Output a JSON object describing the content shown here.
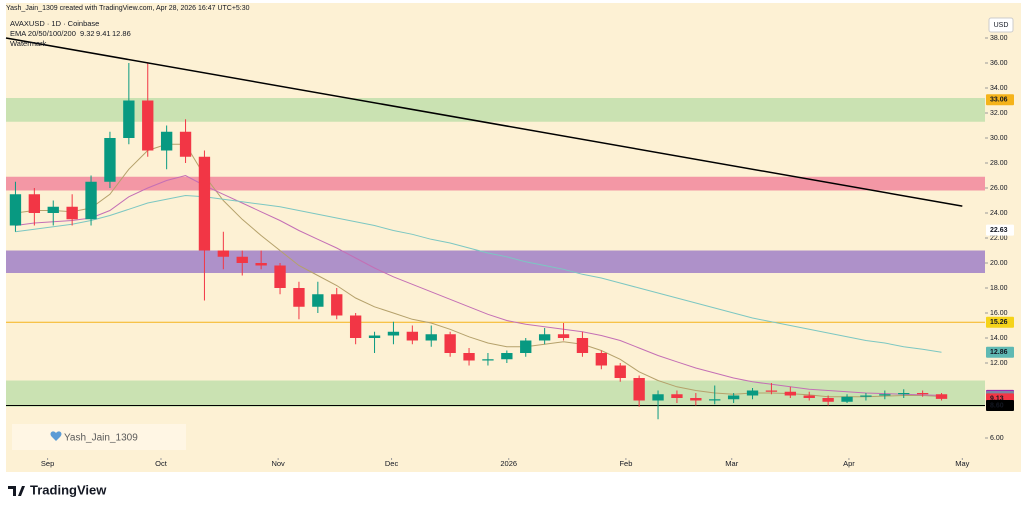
{
  "header": {
    "creator": "Yash_Jain_1309 created with TradingView.com, Apr 28, 2026 16:47 UTC+5:30",
    "watermark_label": "Watermark",
    "watermark_box": "Yash_Jain_1309",
    "brand": "TradingView"
  },
  "chart_data": {
    "type": "candlestick",
    "title": "AVAXUSD · 1D · Coinbase",
    "currency": "USD",
    "indicator_label": "EMA 20/50/100/200",
    "indicator_values": [
      9.32,
      9.41,
      12.86
    ],
    "up_color": "#089981",
    "down_color": "#f23645",
    "background": "#fdf1d4",
    "ohlc": {
      "open": [
        23,
        25.5,
        24,
        24.5,
        23.5,
        26.5,
        30,
        33,
        29,
        30.5,
        28.5,
        21,
        20.5,
        20,
        19.8,
        18,
        16.5,
        17.5,
        15.8,
        14,
        14.2,
        14.5,
        13.8,
        14.3,
        12.8,
        12.2,
        12.3,
        12.8,
        13.8,
        14.3,
        14,
        12.8,
        11.8,
        10.8,
        9,
        9.5,
        9.2,
        9,
        9.1,
        9.4,
        9.8,
        9.7,
        9.4,
        9.2,
        8.9,
        9.3,
        9.4,
        9.5,
        9.6,
        9.5
      ],
      "high": [
        26.5,
        26,
        25,
        25.5,
        27,
        30.5,
        36,
        36,
        31,
        31.5,
        29,
        22.5,
        21,
        21,
        20,
        18.5,
        18.5,
        18,
        16,
        14.5,
        15.3,
        15,
        15,
        14.5,
        13.2,
        12.8,
        13,
        14,
        14.8,
        15.2,
        14.5,
        13,
        12,
        11,
        9.8,
        9.8,
        9.6,
        10.2,
        9.6,
        10,
        10.4,
        10.1,
        9.7,
        9.4,
        9.5,
        9.6,
        9.8,
        9.9,
        9.8,
        9.6
      ],
      "low": [
        22.5,
        23,
        23,
        23,
        23,
        26,
        29.5,
        28.5,
        27.5,
        28,
        17,
        19.5,
        19,
        19.5,
        17.5,
        15.5,
        16,
        15.5,
        13.5,
        12.8,
        13.5,
        13.5,
        13.3,
        12.5,
        11.8,
        11.8,
        12,
        12.5,
        13.5,
        13.8,
        12.5,
        11.5,
        10.5,
        8.5,
        7.5,
        8.8,
        8.6,
        8.7,
        8.8,
        9.1,
        9.5,
        9.2,
        9,
        8.6,
        8.8,
        9,
        9.1,
        9.2,
        9.3,
        9.0
      ],
      "close": [
        25.5,
        24,
        24.5,
        23.5,
        26.5,
        30,
        33,
        29,
        30.5,
        28.5,
        21,
        20.5,
        20,
        19.8,
        18,
        16.5,
        17.5,
        15.8,
        14,
        14.2,
        14.5,
        13.8,
        14.3,
        12.8,
        12.2,
        12.3,
        12.8,
        13.8,
        14.3,
        14,
        12.8,
        11.8,
        10.8,
        9,
        9.5,
        9.2,
        9,
        9.1,
        9.4,
        9.8,
        9.7,
        9.4,
        9.2,
        8.9,
        9.3,
        9.4,
        9.5,
        9.6,
        9.5,
        9.13
      ]
    },
    "series": [
      {
        "color": "#b5a16b",
        "values": [
          24,
          24.2,
          24.2,
          24.1,
          24.4,
          25.5,
          27.5,
          29,
          29.5,
          29.5,
          27,
          25,
          23.5,
          22.2,
          21,
          19.8,
          19,
          18.2,
          17.2,
          16.5,
          16,
          15.5,
          15.2,
          14.7,
          14.1,
          13.6,
          13.3,
          13.3,
          13.5,
          13.7,
          13.5,
          13,
          12.3,
          11.3,
          10.6,
          10.1,
          9.8,
          9.6,
          9.5,
          9.6,
          9.6,
          9.55,
          9.45,
          9.3,
          9.3,
          9.3,
          9.35,
          9.4,
          9.4,
          9.32
        ]
      },
      {
        "color": "#c46fb5",
        "values": [
          23,
          23.2,
          23.3,
          23.4,
          23.6,
          24.2,
          25.3,
          26,
          26.6,
          27,
          26.2,
          25.5,
          24.8,
          24.1,
          23.4,
          22.6,
          21.9,
          21.2,
          20.4,
          19.6,
          18.9,
          18.3,
          17.7,
          17.1,
          16.5,
          15.9,
          15.4,
          15.1,
          14.9,
          14.7,
          14.5,
          14.2,
          13.8,
          13.2,
          12.6,
          12.1,
          11.6,
          11.2,
          10.8,
          10.5,
          10.3,
          10.1,
          9.9,
          9.8,
          9.7,
          9.6,
          9.55,
          9.5,
          9.45,
          9.41
        ]
      },
      {
        "color": "#7cc7c2",
        "values": [
          22.5,
          22.7,
          22.9,
          23.1,
          23.4,
          23.8,
          24.3,
          24.8,
          25.1,
          25.4,
          25.3,
          25.1,
          24.9,
          24.7,
          24.5,
          24.2,
          23.9,
          23.6,
          23.3,
          23,
          22.6,
          22.3,
          21.9,
          21.6,
          21.2,
          20.8,
          20.5,
          20.1,
          19.8,
          19.5,
          19.1,
          18.8,
          18.4,
          18,
          17.6,
          17.2,
          16.8,
          16.4,
          16,
          15.6,
          15.3,
          15,
          14.7,
          14.4,
          14.1,
          13.8,
          13.6,
          13.3,
          13.1,
          12.86
        ]
      }
    ],
    "zones": [
      {
        "from": 31.3,
        "to": 33.2,
        "color": "#c4e0ae"
      },
      {
        "from": 25.8,
        "to": 26.9,
        "color": "#f28da0"
      },
      {
        "from": 19.2,
        "to": 21,
        "color": "#a586c8"
      },
      {
        "from": 8.5,
        "to": 10.6,
        "color": "#c4e0ae"
      }
    ],
    "hlines": [
      {
        "value": 15.26,
        "color": "#f5b31a"
      },
      {
        "value": 8.6,
        "color": "#000000"
      }
    ],
    "trendline": {
      "x": [
        0,
        50.6
      ],
      "y": [
        38,
        24.55
      ],
      "color": "#000000"
    },
    "price_tags": [
      {
        "value": 33.06,
        "bg": "#f5b31a",
        "fg": "#000000"
      },
      {
        "value": 22.63,
        "bg": "#ffffff",
        "fg": "#000000"
      },
      {
        "value": 15.26,
        "bg": "#f5d31a",
        "fg": "#000000"
      },
      {
        "value": 12.86,
        "bg": "#5fb9b3",
        "fg": "#ffffff"
      },
      {
        "value": 9.41,
        "bg": "#9c27b0",
        "fg": "#ffffff"
      },
      {
        "value": 9.32,
        "bg": "#7b86a3",
        "fg": "#ffffff"
      },
      {
        "value": 9.13,
        "bg": "#f23645",
        "fg": "#ffffff"
      },
      {
        "value": 8.6,
        "label": "8.60",
        "bg": "#000000",
        "fg": "#ffffff"
      }
    ],
    "xlim": [
      0,
      51.8
    ],
    "ylim": [
      4.64,
      39.6
    ],
    "xticks": [
      {
        "value": 2.2,
        "label": "Sep"
      },
      {
        "value": 8.2,
        "label": "Oct"
      },
      {
        "value": 14.4,
        "label": "Nov"
      },
      {
        "value": 20.4,
        "label": "Dec"
      },
      {
        "value": 26.6,
        "label": "2026"
      },
      {
        "value": 32.8,
        "label": "Feb"
      },
      {
        "value": 38.4,
        "label": "Mar"
      },
      {
        "value": 44.6,
        "label": "Apr"
      },
      {
        "value": 50.6,
        "label": "May"
      }
    ],
    "yticks": [
      {
        "value": 6,
        "label": "6.00"
      },
      {
        "value": 12,
        "label": "12.00"
      },
      {
        "value": 14,
        "label": "14.00"
      },
      {
        "value": 16,
        "label": "16.00"
      },
      {
        "value": 18,
        "label": "18.00"
      },
      {
        "value": 20,
        "label": "20.00"
      },
      {
        "value": 22,
        "label": "22.00"
      },
      {
        "value": 24,
        "label": "24.00"
      },
      {
        "value": 26,
        "label": "26.00"
      },
      {
        "value": 28,
        "label": "28.00"
      },
      {
        "value": 30,
        "label": "30.00"
      },
      {
        "value": 32,
        "label": "32.00"
      },
      {
        "value": 34,
        "label": "34.00"
      },
      {
        "value": 36,
        "label": "36.00"
      },
      {
        "value": 38,
        "label": "38.00"
      }
    ]
  }
}
